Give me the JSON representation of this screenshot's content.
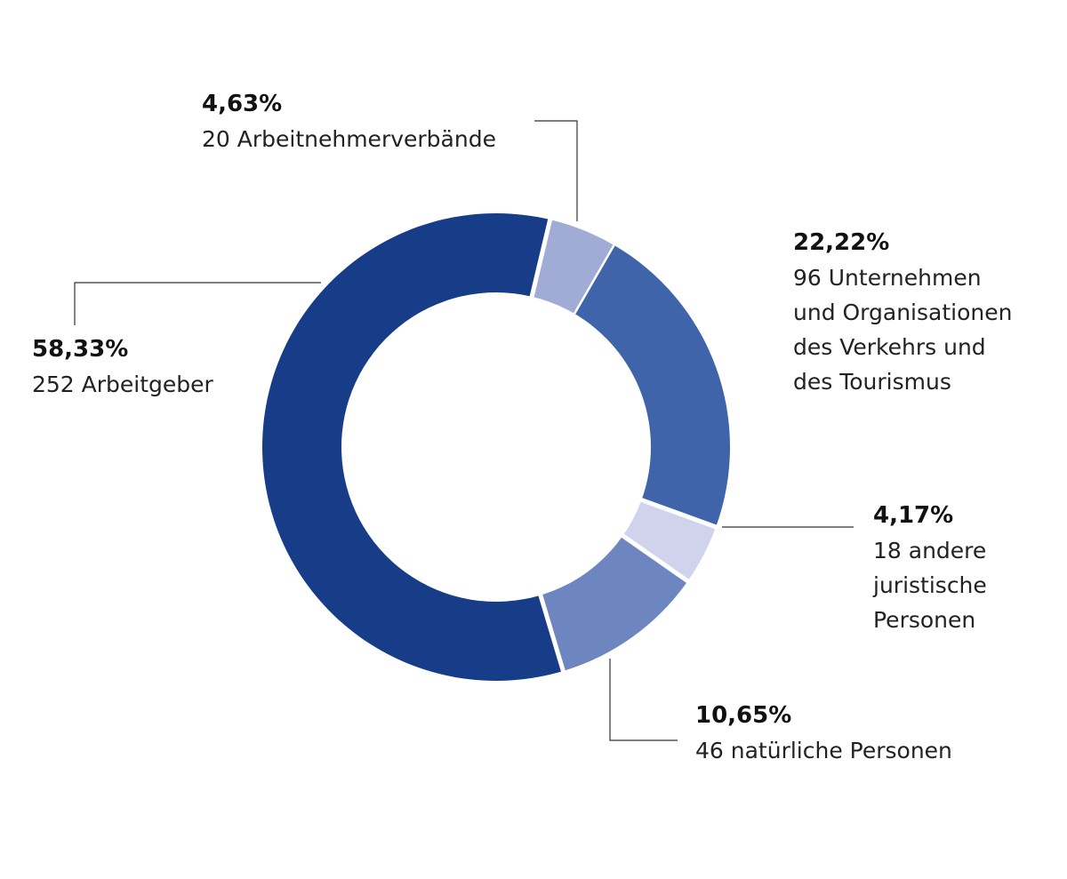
{
  "chart_data": {
    "type": "pie",
    "variant": "donut",
    "slices": [
      {
        "percent_label": "58,33%",
        "description": "252 Arbeitgeber",
        "value": 58.33,
        "count": 252,
        "color": "#173d89"
      },
      {
        "percent_label": "4,63%",
        "description": "20 Arbeitnehmerverbände",
        "value": 4.63,
        "count": 20,
        "color": "#a1acd6"
      },
      {
        "percent_label": "22,22%",
        "description": "96 Unternehmen\nund Organisationen\ndes Verkehrs und\ndes Tourismus",
        "value": 22.22,
        "count": 96,
        "color": "#3f64a9"
      },
      {
        "percent_label": "4,17%",
        "description": "18 andere\njuristische\nPersonen",
        "value": 4.17,
        "count": 18,
        "color": "#cfd4ec"
      },
      {
        "percent_label": "10,65%",
        "description": "46 natürliche Personen",
        "value": 10.65,
        "count": 46,
        "color": "#6e86c0"
      }
    ],
    "leader_line_color": "#333333"
  }
}
